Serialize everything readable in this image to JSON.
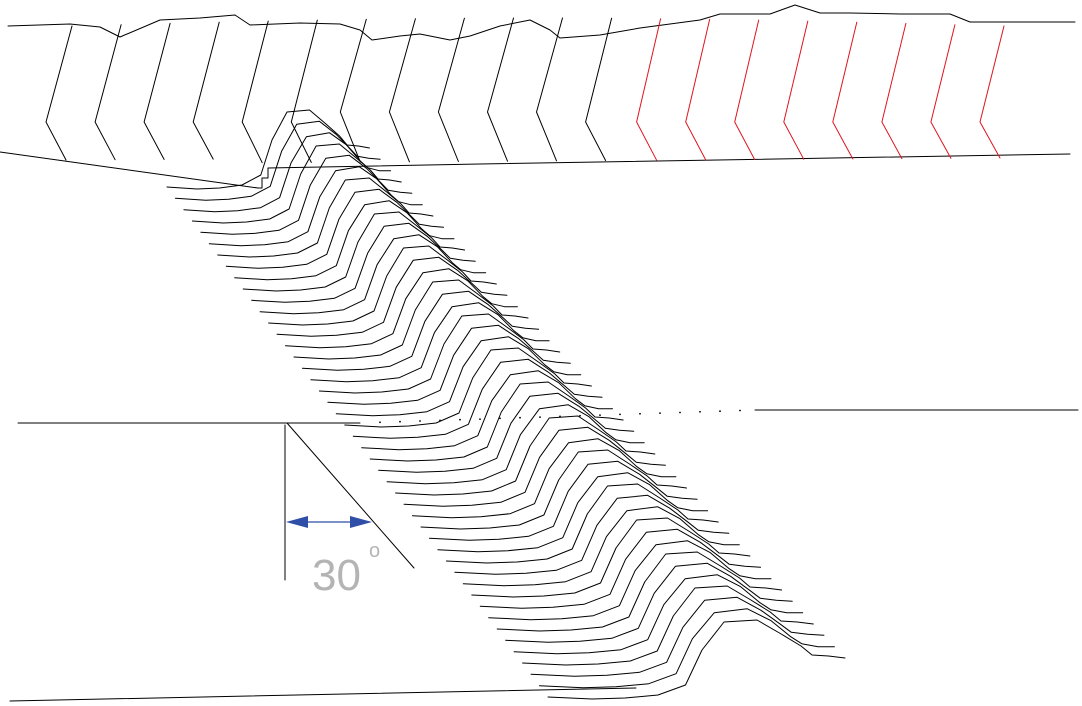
{
  "annotation": {
    "angle_value": "30",
    "angle_unit": "o",
    "angle_degrees": 30
  },
  "colors": {
    "ink": "#000000",
    "rotated_traces": "#e0141e",
    "dimension_arrow": "#2e4ea8",
    "angle_label": "#b4b4b4",
    "background": "#ffffff"
  },
  "layers": {
    "upper_trace_count": 20,
    "upper_rotated_trace_count": 8,
    "fold_trace_count": 46,
    "dotted_reference": true
  }
}
